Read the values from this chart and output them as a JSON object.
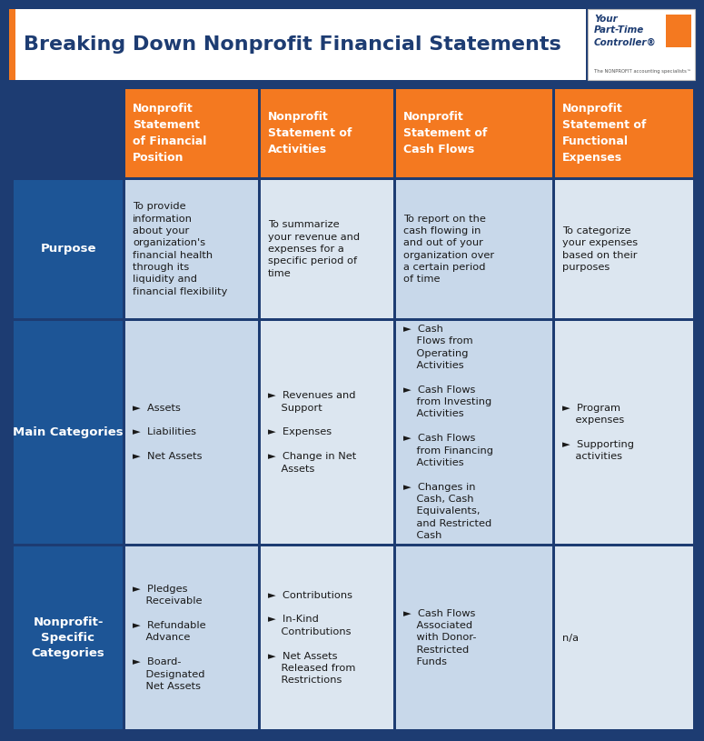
{
  "title": "Breaking Down Nonprofit Financial Statements",
  "bg_color": "#1d3c72",
  "title_color": "#1d3c72",
  "orange_color": "#f47920",
  "row_label_dark": "#1d5596",
  "cell_col0": "#c8d8ea",
  "cell_col1": "#dce6f0",
  "cell_col2": "#c8d8ea",
  "cell_col3": "#dce6f0",
  "text_dark": "#1a1a1a",
  "col_headers": [
    "Nonprofit\nStatement\nof Financial\nPosition",
    "Nonprofit\nStatement of\nActivities",
    "Nonprofit\nStatement of\nCash Flows",
    "Nonprofit\nStatement of\nFunctional\nExpenses"
  ],
  "row_labels": [
    "Purpose",
    "Main\nCategories",
    "Nonprofit-\nSpecific\nCategories"
  ],
  "row_label_single": [
    "Purpose",
    "Main Categories",
    "Nonprofit-\nSpecific\nCategories"
  ],
  "cells": [
    [
      "To provide\ninformation\nabout your\norganization's\nfinancial health\nthrough its\nliquidity and\nfinancial flexibility",
      "To summarize\nyour revenue and\nexpenses for a\nspecific period of\ntime",
      "To report on the\ncash flowing in\nand out of your\norganization over\na certain period\nof time",
      "To categorize\nyour expenses\nbased on their\npurposes"
    ],
    [
      "►  Assets\n\n►  Liabilities\n\n►  Net Assets",
      "►  Revenues and\n    Support\n\n►  Expenses\n\n►  Change in Net\n    Assets",
      "►  Cash\n    Flows from\n    Operating\n    Activities\n\n►  Cash Flows\n    from Investing\n    Activities\n\n►  Cash Flows\n    from Financing\n    Activities\n\n►  Changes in\n    Cash, Cash\n    Equivalents,\n    and Restricted\n    Cash",
      "►  Program\n    expenses\n\n►  Supporting\n    activities"
    ],
    [
      "►  Pledges\n    Receivable\n\n►  Refundable\n    Advance\n\n►  Board-\n    Designated\n    Net Assets",
      "►  Contributions\n\n►  In-Kind\n    Contributions\n\n►  Net Assets\n    Released from\n    Restrictions",
      "►  Cash Flows\n    Associated\n    with Donor-\n    Restricted\n    Funds",
      "n/a"
    ]
  ],
  "fig_w": 7.75,
  "fig_h": 8.15,
  "dpi": 100
}
